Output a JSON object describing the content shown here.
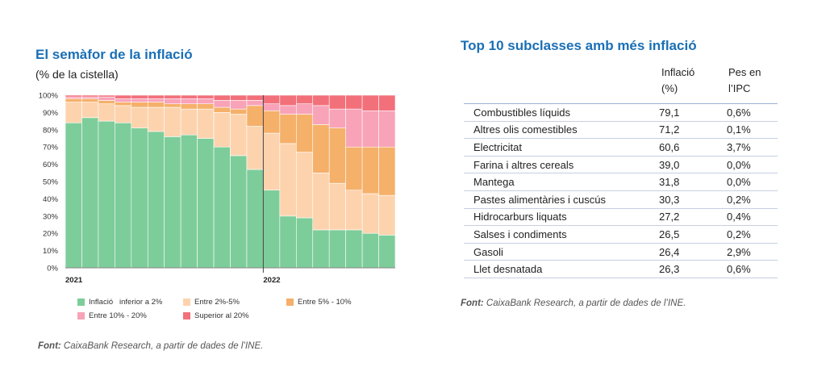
{
  "left": {
    "title": "El semàfor de la inflació",
    "subtitle": "(% de la cistella)",
    "source_label": "Font:",
    "source_text": " CaixaBank Research, a partir de dades de l’INE."
  },
  "chart_data": {
    "type": "bar",
    "stacked": true,
    "periods": 20,
    "x_year_labels": [
      "2021",
      "2022"
    ],
    "y_ticks": [
      "0%",
      "10%",
      "20%",
      "30%",
      "40%",
      "50%",
      "60%",
      "70%",
      "80%",
      "90%",
      "100%"
    ],
    "ylim": [
      0,
      100
    ],
    "series": [
      {
        "name": "Inflació   inferior a 2%",
        "color": "#7dcd9a",
        "values": [
          84,
          87,
          85,
          84,
          81,
          79,
          76,
          77,
          75,
          70,
          65,
          57,
          45,
          30,
          29,
          22,
          22,
          22,
          20,
          19
        ]
      },
      {
        "name": "Entre 2%-5%",
        "color": "#fdd3ae",
        "values": [
          12,
          9,
          10,
          10,
          12,
          14,
          17,
          15,
          17,
          20,
          24,
          25,
          33,
          42,
          38,
          33,
          27,
          23,
          23,
          23
        ]
      },
      {
        "name": "Entre 5% - 10%",
        "color": "#f5b06a",
        "values": [
          2,
          2,
          2,
          2,
          3,
          3,
          2,
          3,
          3,
          3,
          3,
          12,
          13,
          17,
          22,
          28,
          32,
          25,
          27,
          28
        ]
      },
      {
        "name": "Entre 10% - 20%",
        "color": "#f8a3b8",
        "values": [
          1,
          1,
          2,
          2,
          2,
          2,
          3,
          3,
          3,
          4,
          5,
          3,
          4,
          5,
          6,
          11,
          11,
          22,
          21,
          21
        ]
      },
      {
        "name": "Superior al 20%",
        "color": "#f2707a",
        "values": [
          1,
          1,
          1,
          2,
          2,
          2,
          2,
          2,
          2,
          3,
          3,
          3,
          5,
          6,
          5,
          6,
          8,
          8,
          9,
          9
        ]
      }
    ]
  },
  "right": {
    "title": "Top 10 subclasses amb més inflació",
    "col_inflacio_1": "Inflació",
    "col_inflacio_2": "(%)",
    "col_pes_1": "Pes en",
    "col_pes_2": "l’IPC",
    "rows": [
      {
        "name": "Combustibles líquids",
        "inflacio": "79,1",
        "pes": "0,6%"
      },
      {
        "name": "Altres olis comestibles",
        "inflacio": "71,2",
        "pes": "0,1%"
      },
      {
        "name": "Electricitat",
        "inflacio": "60,6",
        "pes": "3,7%"
      },
      {
        "name": "Farina i altres cereals",
        "inflacio": "39,0",
        "pes": "0,0%"
      },
      {
        "name": "Mantega",
        "inflacio": "31,8",
        "pes": "0,0%"
      },
      {
        "name": "Pastes alimentàries i cuscús",
        "inflacio": "30,3",
        "pes": "0,2%"
      },
      {
        "name": "Hidrocarburs liquats",
        "inflacio": "27,2",
        "pes": "0,4%"
      },
      {
        "name": "Salses i condiments",
        "inflacio": "26,5",
        "pes": "0,2%"
      },
      {
        "name": "Gasoli",
        "inflacio": "26,4",
        "pes": "2,9%"
      },
      {
        "name": "Llet desnatada",
        "inflacio": "26,3",
        "pes": "0,6%"
      }
    ],
    "source_label": "Font:",
    "source_text": " CaixaBank Research, a partir de dades de l’INE."
  }
}
